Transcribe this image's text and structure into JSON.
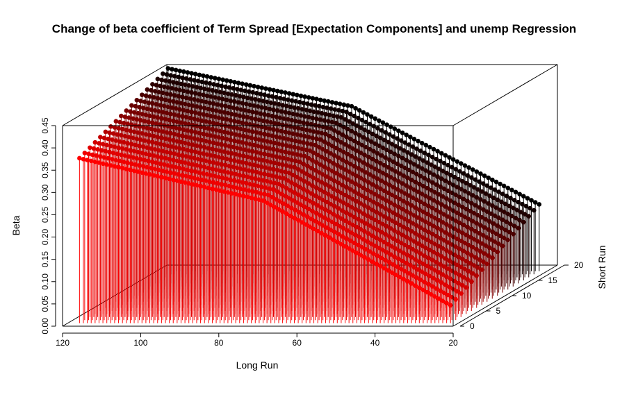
{
  "chart_data": {
    "type": "scatter3d",
    "title": "Change of beta coefficient of Term Spread [Expectation Components] and unemp Regression",
    "xlabel": "Long Run",
    "ylabel": "Short Run",
    "zlabel": "Beta",
    "xlim": [
      20,
      120
    ],
    "ylim": [
      0,
      20
    ],
    "zlim": [
      0,
      0.45
    ],
    "x_ticks": [
      "20",
      "40",
      "60",
      "80",
      "100",
      "120"
    ],
    "y_ticks": [
      "0",
      "5",
      "10",
      "15",
      "20"
    ],
    "z_ticks": [
      "0.00",
      "0.05",
      "0.10",
      "0.15",
      "0.20",
      "0.25",
      "0.30",
      "0.35",
      "0.40",
      "0.45"
    ],
    "long_run_range": [
      22,
      117
    ],
    "short_run_range": [
      1,
      18
    ],
    "beta_surface": {
      "description_of_samples": "beta at (long run, short run)",
      "at_long_117": {
        "short_1": 0.37,
        "short_18": 0.455
      },
      "at_long_70": {
        "short_1": 0.275,
        "short_18": 0.37
      },
      "at_long_22": {
        "short_1": 0.04,
        "short_18": 0.15
      }
    },
    "color_scale": {
      "low_short_run": "#ff0000",
      "high_short_run": "#000000"
    },
    "drop_lines": true,
    "grid": false
  }
}
